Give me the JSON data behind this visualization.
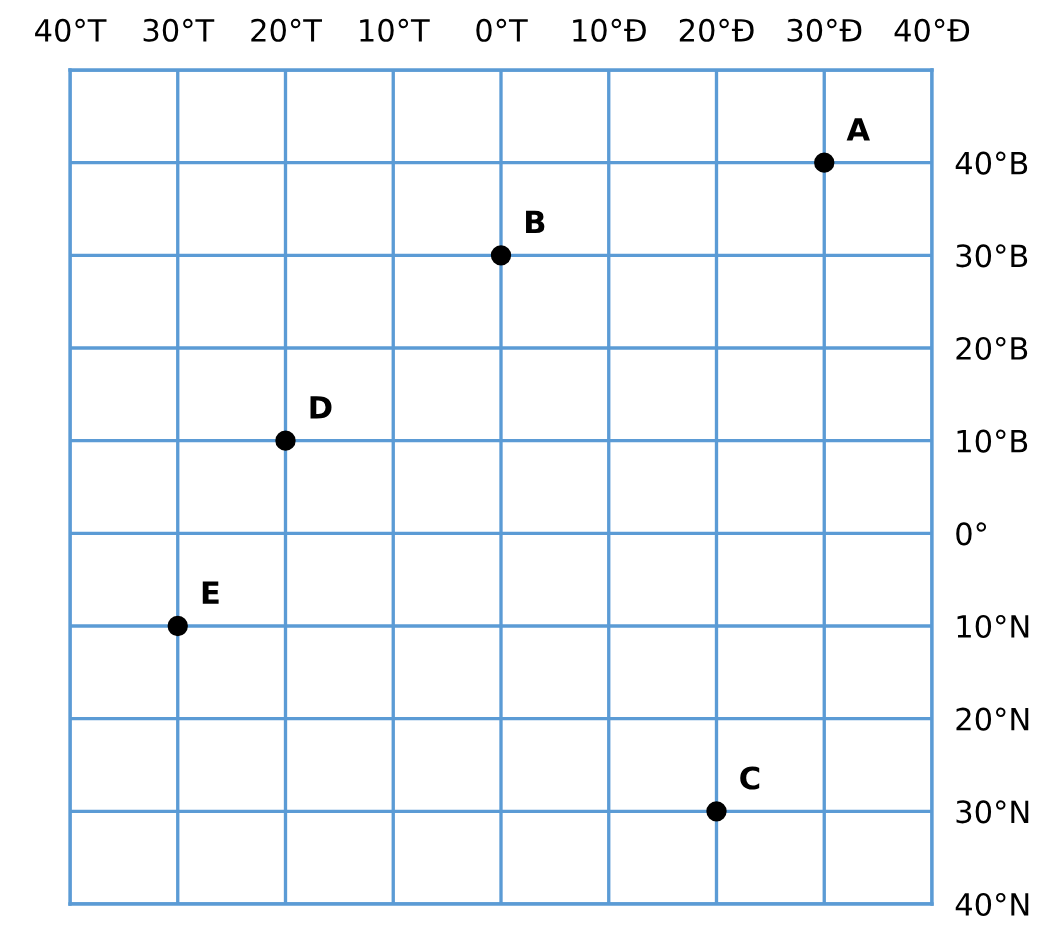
{
  "chart_data": {
    "type": "scatter",
    "x": [
      30,
      0,
      20,
      -20,
      -30
    ],
    "values": [
      40,
      30,
      -30,
      10,
      -10
    ],
    "color": "#000000",
    "marker": "circle",
    "xlim": [
      -40,
      40
    ],
    "ylim": [
      -40,
      50
    ],
    "xticks": [
      {
        "value": -40,
        "label": "40°T"
      },
      {
        "value": -30,
        "label": "30°T"
      },
      {
        "value": -20,
        "label": "20°T"
      },
      {
        "value": -10,
        "label": "10°T"
      },
      {
        "value": 0,
        "label": "0°T"
      },
      {
        "value": 10,
        "label": "10°Đ"
      },
      {
        "value": 20,
        "label": "20°Đ"
      },
      {
        "value": 30,
        "label": "30°Đ"
      },
      {
        "value": 40,
        "label": "40°Đ"
      }
    ],
    "yticks": [
      {
        "value": -40,
        "label": "40°N"
      },
      {
        "value": -30,
        "label": "30°N"
      },
      {
        "value": -20,
        "label": "20°N"
      },
      {
        "value": -10,
        "label": "10°N"
      },
      {
        "value": 0,
        "label": "0°"
      },
      {
        "value": 10,
        "label": "10°B"
      },
      {
        "value": 20,
        "label": "20°B"
      },
      {
        "value": 30,
        "label": "30°B"
      },
      {
        "value": 40,
        "label": "40°B"
      },
      {
        "value": 50,
        "label": null
      }
    ],
    "grid": true,
    "annotations": [
      {
        "text": "A",
        "x": 30,
        "y": 40
      },
      {
        "text": "B",
        "x": 0,
        "y": 30
      },
      {
        "text": "C",
        "x": 20,
        "y": -30
      },
      {
        "text": "D",
        "x": -20,
        "y": 10
      },
      {
        "text": "E",
        "x": -30,
        "y": -10
      }
    ]
  }
}
